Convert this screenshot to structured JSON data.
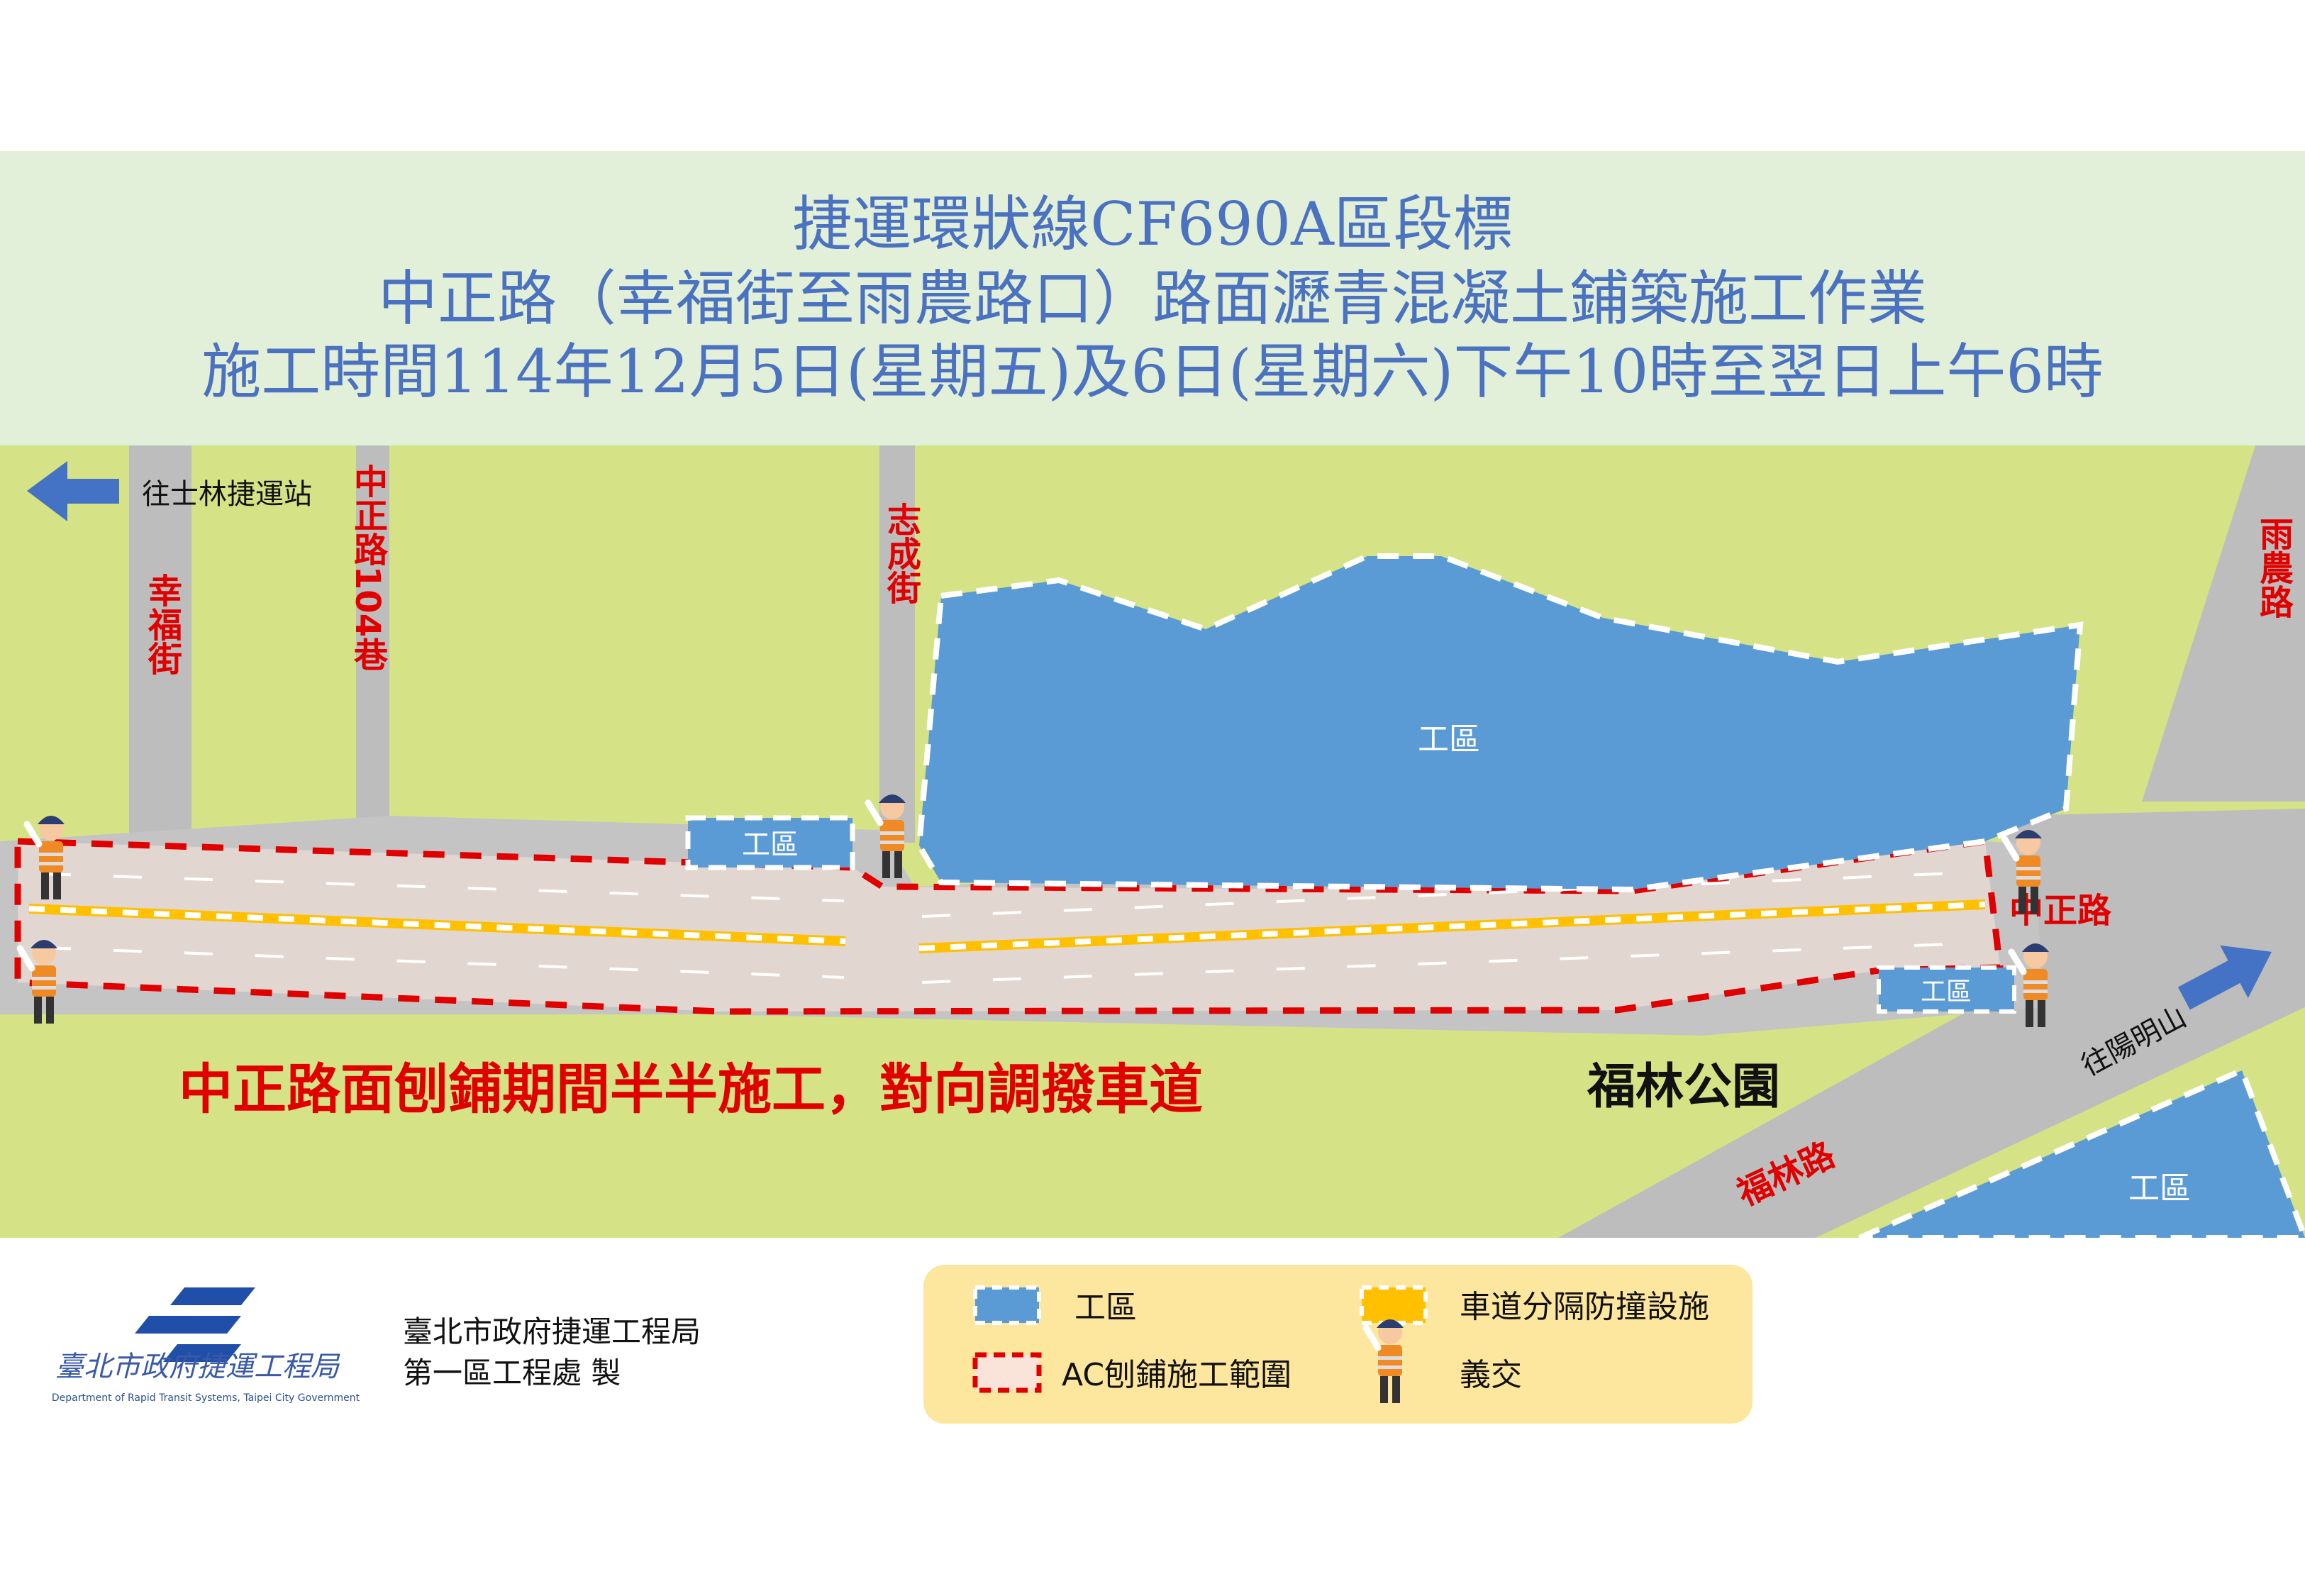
{
  "header": {
    "title_line1": "捷運環狀線CF690A區段標",
    "title_line2": "中正路（幸福街至雨農路口）路面瀝青混凝土鋪築施工作業",
    "title_line3": "施工時間114年12月5日(星期五)及6日(星期六)下午10時至翌日上午6時"
  },
  "map": {
    "direction_shilin": "往士林捷運站",
    "direction_yangmingshan": "往陽明山",
    "streets": {
      "xingfu": "幸福街",
      "zhongzheng_lane104": "中正路104巷",
      "zhicheng": "志成街",
      "yunong": "雨農路",
      "zhongzheng": "中正路",
      "fulin": "福林路"
    },
    "park": "福林公園",
    "work_zone_label": "工區",
    "notice": "中正路面刨鋪期間半半施工，對向調撥車道"
  },
  "footer": {
    "org_logo_text": "臺北市政府捷運工程局",
    "org_logo_english": "Department of Rapid Transit Systems, Taipei City Government",
    "org_line1": "臺北市政府捷運工程局",
    "org_line2": "第一區工程處 製"
  },
  "legend": {
    "items": [
      {
        "label": "工區",
        "icon": "blue-dashed-box"
      },
      {
        "label": "車道分隔防撞設施",
        "icon": "yellow-dashed-box"
      },
      {
        "label": "AC刨鋪施工範圍",
        "icon": "red-dashed-box"
      },
      {
        "label": "義交",
        "icon": "traffic-warden"
      }
    ]
  },
  "colors": {
    "title": "#4a72c0",
    "title_band": "#e2efd9",
    "grass": "#d5e386",
    "road": "#bdbdbd",
    "paving_area": "#e2d6d0",
    "work_zone": "#5b9bd5",
    "red_dash": "#e00000",
    "divider": "#ffc000",
    "legend_bg": "#fde69d"
  }
}
